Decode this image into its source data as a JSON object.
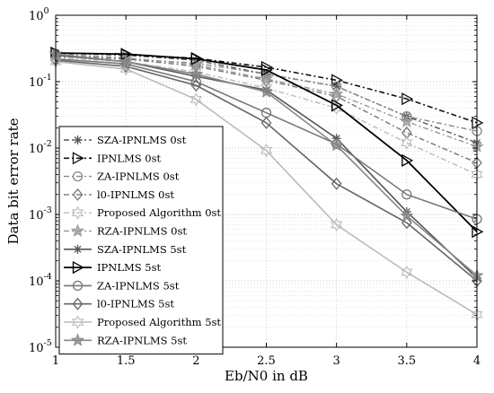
{
  "chart_data": {
    "type": "line",
    "xlabel": "Eb/N0 in dB",
    "ylabel": "Data bit error rate",
    "x": [
      1,
      1.5,
      2,
      2.5,
      3,
      3.5,
      4
    ],
    "xlim": [
      1,
      4
    ],
    "ylim": [
      1e-05,
      1
    ],
    "yscale": "log",
    "grid": true,
    "legend_position": "lower-left",
    "x_tick_labels": [
      "1",
      "1.5",
      "2",
      "2.5",
      "3",
      "3.5",
      "4"
    ],
    "y_ticks": [
      {
        "base": "10",
        "exp": "0"
      },
      {
        "base": "10",
        "exp": "-1"
      },
      {
        "base": "10",
        "exp": "-2"
      },
      {
        "base": "10",
        "exp": "-3"
      },
      {
        "base": "10",
        "exp": "-4"
      },
      {
        "base": "10",
        "exp": "-5"
      }
    ],
    "series": [
      {
        "name": "SZA-IPNLMS 0st",
        "values": [
          0.27,
          0.25,
          0.21,
          0.13,
          0.085,
          0.03,
          0.012
        ],
        "color": "#555555",
        "dash": "6,3,2,3",
        "marker": "asterisk",
        "width": 1.4
      },
      {
        "name": "IPNLMS 0st",
        "values": [
          0.27,
          0.255,
          0.225,
          0.165,
          0.105,
          0.055,
          0.024
        ],
        "color": "#111111",
        "dash": "6,3,2,3",
        "marker": "triangle-right",
        "width": 1.6
      },
      {
        "name": "ZA-IPNLMS 0st",
        "values": [
          0.24,
          0.22,
          0.19,
          0.13,
          0.085,
          0.03,
          0.018
        ],
        "color": "#888888",
        "dash": "6,3,2,3",
        "marker": "circle",
        "width": 1.4
      },
      {
        "name": "l0-IPNLMS 0st",
        "values": [
          0.25,
          0.22,
          0.17,
          0.105,
          0.06,
          0.017,
          0.006
        ],
        "color": "#777777",
        "dash": "6,3,2,3",
        "marker": "diamond",
        "width": 1.4
      },
      {
        "name": "Proposed Algorithm 0st",
        "values": [
          0.23,
          0.2,
          0.14,
          0.08,
          0.04,
          0.012,
          0.004
        ],
        "color": "#bbbbbb",
        "dash": "6,3,2,3",
        "marker": "hexagram",
        "width": 1.4
      },
      {
        "name": "RZA-IPNLMS 0st",
        "values": [
          0.26,
          0.23,
          0.18,
          0.11,
          0.065,
          0.025,
          0.0105
        ],
        "color": "#999999",
        "dash": "6,3,2,3",
        "marker": "star",
        "width": 1.4
      },
      {
        "name": "SZA-IPNLMS 5st",
        "values": [
          0.25,
          0.2,
          0.12,
          0.075,
          0.014,
          0.0011,
          0.00011
        ],
        "color": "#555555",
        "dash": "",
        "marker": "asterisk",
        "width": 1.6
      },
      {
        "name": "IPNLMS 5st",
        "values": [
          0.27,
          0.26,
          0.22,
          0.15,
          0.044,
          0.0065,
          0.00055
        ],
        "color": "#000000",
        "dash": "",
        "marker": "triangle-right",
        "width": 1.8
      },
      {
        "name": "ZA-IPNLMS 5st",
        "values": [
          0.22,
          0.185,
          0.1,
          0.034,
          0.0115,
          0.002,
          0.00085
        ],
        "color": "#777777",
        "dash": "",
        "marker": "circle",
        "width": 1.6
      },
      {
        "name": "l0-IPNLMS 5st",
        "values": [
          0.21,
          0.17,
          0.088,
          0.024,
          0.0029,
          0.00075,
          0.0001
        ],
        "color": "#666666",
        "dash": "",
        "marker": "diamond",
        "width": 1.6
      },
      {
        "name": "Proposed Algorithm 5st",
        "values": [
          0.2,
          0.155,
          0.054,
          0.0092,
          0.0007,
          0.000135,
          3.1e-05
        ],
        "color": "#bbbbbb",
        "dash": "",
        "marker": "hexagram",
        "width": 1.6
      },
      {
        "name": "RZA-IPNLMS 5st",
        "values": [
          0.26,
          0.2,
          0.13,
          0.07,
          0.011,
          0.00095,
          0.00012
        ],
        "color": "#888888",
        "dash": "",
        "marker": "star",
        "width": 1.6
      }
    ]
  }
}
